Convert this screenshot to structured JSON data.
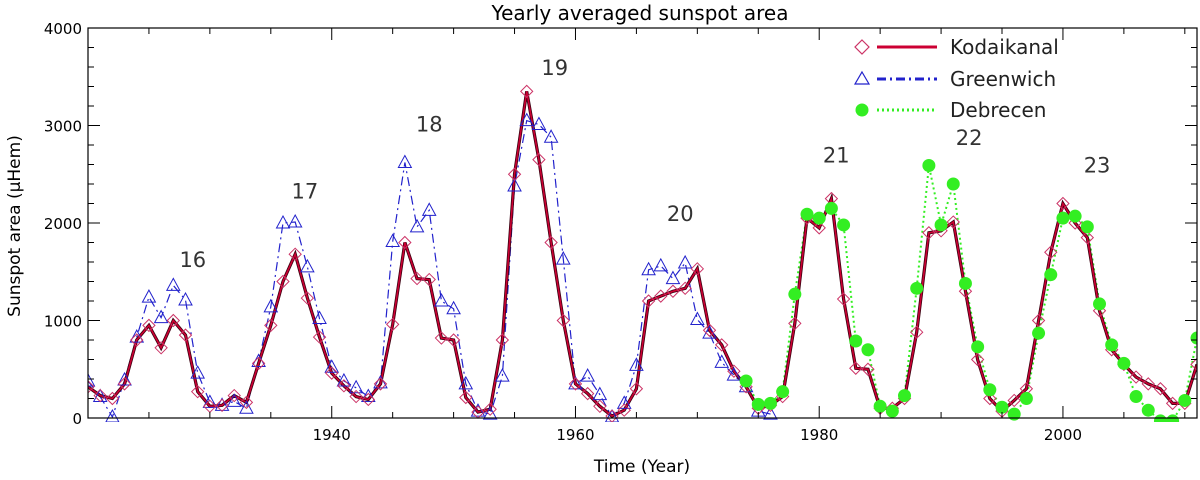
{
  "chart_data": {
    "type": "line",
    "title": "Yearly averaged sunspot area",
    "xlabel": "Time (Year)",
    "ylabel": "Sunspot area (μHem)",
    "xlim": [
      1920,
      2011
    ],
    "ylim": [
      0,
      4000
    ],
    "x_ticks": [
      1940,
      1960,
      1980,
      2000
    ],
    "y_ticks": [
      0,
      1000,
      2000,
      3000,
      4000
    ],
    "legend_position": "top-right",
    "colors": {
      "kodaikanal": "#cc0033",
      "kodaikanal_marker": "#cc3366",
      "greenwich": "#2222cc",
      "debrecen": "#33ee22",
      "axis": "#000000"
    },
    "series": [
      {
        "name": "Kodaikanal",
        "x": [
          1920,
          1921,
          1922,
          1923,
          1924,
          1925,
          1926,
          1927,
          1928,
          1929,
          1930,
          1931,
          1932,
          1933,
          1934,
          1935,
          1936,
          1937,
          1938,
          1939,
          1940,
          1941,
          1942,
          1943,
          1944,
          1945,
          1946,
          1947,
          1948,
          1949,
          1950,
          1951,
          1952,
          1953,
          1954,
          1955,
          1956,
          1957,
          1958,
          1959,
          1960,
          1961,
          1962,
          1963,
          1964,
          1965,
          1966,
          1967,
          1968,
          1969,
          1970,
          1971,
          1972,
          1973,
          1974,
          1975,
          1976,
          1977,
          1978,
          1979,
          1980,
          1981,
          1982,
          1983,
          1984,
          1985,
          1986,
          1987,
          1988,
          1989,
          1990,
          1991,
          1992,
          1993,
          1994,
          1995,
          1996,
          1997,
          1998,
          1999,
          2000,
          2001,
          2002,
          2003,
          2004,
          2005,
          2006,
          2007,
          2008,
          2009,
          2010,
          2011
        ],
        "y": [
          320,
          230,
          200,
          350,
          800,
          950,
          720,
          1000,
          850,
          270,
          120,
          130,
          230,
          160,
          560,
          950,
          1400,
          1680,
          1230,
          830,
          460,
          330,
          220,
          190,
          350,
          960,
          1800,
          1430,
          1420,
          820,
          800,
          210,
          60,
          90,
          800,
          2500,
          3350,
          2650,
          1800,
          1000,
          350,
          250,
          120,
          20,
          80,
          300,
          1200,
          1250,
          1300,
          1330,
          1530,
          900,
          750,
          480,
          320,
          100,
          130,
          220,
          970,
          2050,
          1950,
          2250,
          1220,
          510,
          500,
          100,
          100,
          200,
          880,
          1900,
          1920,
          2010,
          1300,
          600,
          200,
          70,
          180,
          300,
          1000,
          1700,
          2200,
          2000,
          1850,
          1100,
          700,
          550,
          420,
          350,
          300,
          150,
          150,
          550
        ]
      },
      {
        "name": "Greenwich",
        "x": [
          1920,
          1921,
          1922,
          1923,
          1924,
          1925,
          1926,
          1927,
          1928,
          1929,
          1930,
          1931,
          1932,
          1933,
          1934,
          1935,
          1936,
          1937,
          1938,
          1939,
          1940,
          1941,
          1942,
          1943,
          1944,
          1945,
          1946,
          1947,
          1948,
          1949,
          1950,
          1951,
          1952,
          1953,
          1954,
          1955,
          1956,
          1957,
          1958,
          1959,
          1960,
          1961,
          1962,
          1963,
          1964,
          1965,
          1966,
          1967,
          1968,
          1969,
          1970,
          1971,
          1972,
          1973,
          1974,
          1975,
          1976
        ],
        "y": [
          380,
          220,
          10,
          390,
          830,
          1240,
          1030,
          1360,
          1210,
          460,
          160,
          130,
          170,
          100,
          580,
          1140,
          2000,
          2010,
          1550,
          1020,
          520,
          380,
          310,
          220,
          360,
          1810,
          2620,
          1960,
          2130,
          1200,
          1120,
          350,
          70,
          40,
          430,
          2380,
          3050,
          3010,
          2880,
          1630,
          350,
          430,
          240,
          10,
          150,
          540,
          1520,
          1560,
          1430,
          1590,
          1010,
          870,
          570,
          440,
          320,
          70,
          40
        ]
      },
      {
        "name": "Debrecen",
        "x": [
          1974,
          1975,
          1976,
          1977,
          1978,
          1979,
          1980,
          1981,
          1982,
          1983,
          1984,
          1985,
          1986,
          1987,
          1988,
          1989,
          1990,
          1991,
          1992,
          1993,
          1994,
          1995,
          1996,
          1997,
          1998,
          1999,
          2000,
          2001,
          2002,
          2003,
          2004,
          2005,
          2006,
          2007,
          2008,
          2009,
          2010,
          2011
        ],
        "y": [
          380,
          140,
          150,
          270,
          1270,
          2090,
          2050,
          2150,
          1980,
          790,
          700,
          120,
          70,
          230,
          1330,
          2590,
          1980,
          2400,
          1380,
          730,
          290,
          110,
          40,
          200,
          870,
          1470,
          2050,
          2070,
          1960,
          1170,
          750,
          560,
          220,
          80,
          -30,
          -30,
          180,
          820
        ]
      }
    ],
    "annotations": [
      {
        "text": "16",
        "x": 1928.6,
        "y": 1550
      },
      {
        "text": "17",
        "x": 1937.8,
        "y": 2250
      },
      {
        "text": "18",
        "x": 1948.0,
        "y": 2940
      },
      {
        "text": "19",
        "x": 1958.3,
        "y": 3520
      },
      {
        "text": "20",
        "x": 1968.6,
        "y": 2020
      },
      {
        "text": "21",
        "x": 1981.4,
        "y": 2620
      },
      {
        "text": "22",
        "x": 1992.3,
        "y": 2800
      },
      {
        "text": "23",
        "x": 2002.8,
        "y": 2520
      }
    ]
  }
}
